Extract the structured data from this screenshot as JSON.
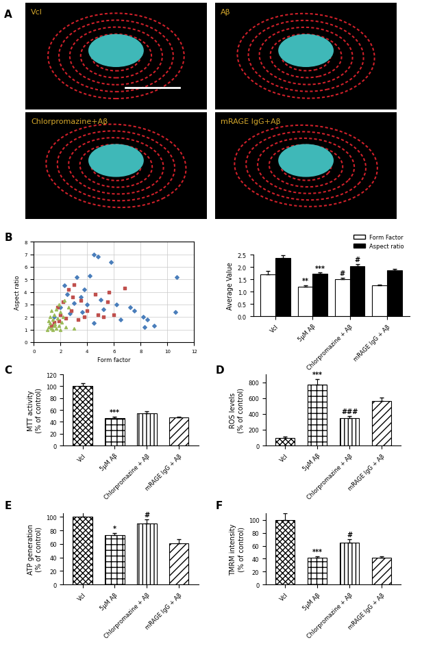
{
  "panel_letters": [
    "A",
    "B",
    "C",
    "D",
    "E",
    "F"
  ],
  "images": [
    {
      "label": "Vcl"
    },
    {
      "label": "Aβ"
    },
    {
      "label": "Chlorpromazine+Aβ"
    },
    {
      "label": "mRAGE IgG+Aβ"
    }
  ],
  "chart_data": [
    {
      "type": "scatter",
      "xlabel": "Form factor",
      "ylabel": "Aspect ratio",
      "xlim": [
        0,
        12
      ],
      "xticks": [
        0,
        2,
        4,
        6,
        8,
        10,
        12
      ],
      "ylim": [
        0,
        8
      ],
      "yticks": [
        0,
        1,
        2,
        3,
        4,
        5,
        6,
        7,
        8
      ],
      "grid": true,
      "series": [
        {
          "color": "#4a7ebb",
          "marker": "diamond",
          "x": [
            4.5,
            4.8,
            5.8,
            3.2,
            10.7,
            2.3,
            3.8,
            4.2,
            2.5,
            3.5,
            5.0,
            6.2,
            7.5,
            8.2,
            8.5,
            8.3,
            10.6,
            6.5,
            5.2,
            4.0,
            3.0,
            2.0,
            1.5,
            2.7,
            7.2,
            9.0,
            4.5,
            3.6
          ],
          "values": [
            7.0,
            6.8,
            6.4,
            5.2,
            5.2,
            4.5,
            4.2,
            5.3,
            3.8,
            3.6,
            3.4,
            3.0,
            2.5,
            2.0,
            1.8,
            1.2,
            2.4,
            1.8,
            2.6,
            3.0,
            3.1,
            2.8,
            2.0,
            2.3,
            2.8,
            1.3,
            1.5,
            2.4
          ]
        },
        {
          "color": "#c0504d",
          "marker": "square",
          "x": [
            6.8,
            5.6,
            3.0,
            2.6,
            4.6,
            3.5,
            2.2,
            1.8,
            2.8,
            4.0,
            5.2,
            3.3,
            2.4,
            1.5,
            6.0,
            4.8,
            3.8,
            2.0,
            1.3,
            2.9,
            5.5,
            1.9
          ],
          "values": [
            4.3,
            4.0,
            4.6,
            4.2,
            3.8,
            3.3,
            3.2,
            2.8,
            2.5,
            2.5,
            2.0,
            1.8,
            1.9,
            1.6,
            2.2,
            2.2,
            2.0,
            2.2,
            1.3,
            3.6,
            3.2,
            1.7
          ]
        },
        {
          "color": "#9bbb59",
          "marker": "triangle",
          "x": [
            1.0,
            1.1,
            1.2,
            1.3,
            1.4,
            1.5,
            1.6,
            1.7,
            1.8,
            1.9,
            2.0,
            2.1,
            2.2,
            2.4,
            2.6,
            1.2,
            1.1,
            1.5,
            1.3,
            1.7,
            2.3,
            1.4,
            1.9,
            3.0,
            2.0
          ],
          "values": [
            1.0,
            1.2,
            1.5,
            1.1,
            1.8,
            2.2,
            1.4,
            2.6,
            1.9,
            3.0,
            2.4,
            1.6,
            2.0,
            1.2,
            2.8,
            2.0,
            1.7,
            1.3,
            2.5,
            1.1,
            3.3,
            1.0,
            1.3,
            1.1,
            1.0
          ]
        }
      ]
    },
    {
      "type": "bar",
      "ylabel": "Average Value",
      "categories": [
        "Vcl",
        "5μM Aβ",
        "Chlorpromazine + Aβ",
        "mRAGE IgG + Aβ"
      ],
      "ylim": [
        0,
        2.5
      ],
      "yticks": [
        {
          "value": 0,
          "label": "0.0"
        },
        0.5,
        {
          "value": 1,
          "label": "1.0"
        },
        1.5,
        {
          "value": 2,
          "label": "2.0"
        },
        2.5
      ],
      "legend": "upper right",
      "series": [
        {
          "name": "Form Factor",
          "color": "#ffffff",
          "values": [
            1.7,
            1.2,
            1.5,
            1.25
          ],
          "errors": [
            0.15,
            0.05,
            0.07,
            0.02
          ],
          "annotations": [
            null,
            "**",
            "#",
            null
          ]
        },
        {
          "name": "Aspect ratio",
          "color": "#000000",
          "values": [
            2.37,
            1.72,
            2.03,
            1.87
          ],
          "errors": [
            0.1,
            0.05,
            0.08,
            0.04
          ],
          "annotations": [
            null,
            "***",
            "#",
            null
          ]
        }
      ]
    },
    {
      "type": "bar",
      "ylabel": "MTT activity\n(% of control)",
      "categories": [
        "Vcl",
        "5μM Aβ",
        "Chlorpromazine + Aβ",
        "mRAGE IgG + Aβ"
      ],
      "values": [
        100,
        46,
        54,
        47
      ],
      "errors": [
        5,
        3,
        4,
        2
      ],
      "annotations": [
        null,
        "***",
        null,
        null
      ],
      "color": "#ffffff",
      "ylim": [
        0,
        120
      ],
      "yticks": [
        0,
        20,
        40,
        60,
        80,
        100,
        120
      ]
    },
    {
      "type": "bar",
      "ylabel": "ROS levels\n(% of control)",
      "categories": [
        "Vcl",
        "5μM Aβ",
        "Chlorpromazine + Aβ",
        "mRAGE IgG + Aβ"
      ],
      "values": [
        100,
        770,
        345,
        565
      ],
      "errors": [
        15,
        70,
        30,
        45
      ],
      "annotations": [
        null,
        "***",
        "###",
        null
      ],
      "color": "#ffffff",
      "ylim": [
        0,
        900
      ],
      "yticks": [
        0,
        200,
        400,
        600,
        800
      ]
    },
    {
      "type": "bar",
      "ylabel": "ATP generation\n(% of control)",
      "categories": [
        "Vcl",
        "5μM Aβ",
        "Chlorpromazine + Aβ",
        "mRAGE IgG + Aβ"
      ],
      "values": [
        100,
        73,
        90,
        61
      ],
      "errors": [
        10,
        3,
        6,
        6
      ],
      "annotations": [
        null,
        "*",
        "#",
        null
      ],
      "color": "#ffffff",
      "ylim": [
        0,
        105
      ],
      "yticks": [
        0,
        20,
        40,
        60,
        80,
        100
      ]
    },
    {
      "type": "bar",
      "ylabel": "TMRM intensity\n(% of control)",
      "categories": [
        "Vcl",
        "5μM Aβ",
        "Chlorpromazine + Aβ",
        "mRAGE IgG + Aβ"
      ],
      "values": [
        100,
        42,
        65,
        42
      ],
      "errors": [
        10,
        2,
        5,
        2
      ],
      "annotations": [
        null,
        "***",
        "#",
        null
      ],
      "color": "#ffffff",
      "ylim": [
        0,
        110
      ],
      "yticks": [
        0,
        20,
        40,
        60,
        80,
        100
      ]
    }
  ]
}
